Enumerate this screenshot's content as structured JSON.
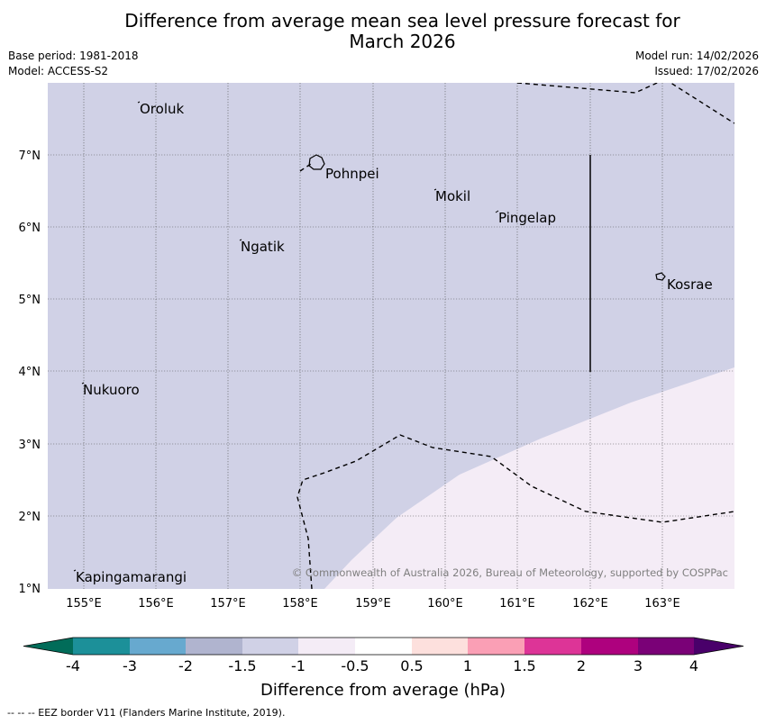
{
  "title": {
    "line1": "Difference from average mean sea level pressure forecast for",
    "line2": "March 2026"
  },
  "meta": {
    "base_period": "Base period: 1981-2018",
    "model": "Model: ACCESS-S2",
    "model_run": "Model run: 14/02/2026",
    "issued": "Issued: 17/02/2026"
  },
  "map": {
    "lon_labels": [
      "155°E",
      "156°E",
      "157°E",
      "158°E",
      "159°E",
      "160°E",
      "161°E",
      "162°E",
      "163°E"
    ],
    "lat_labels": [
      "7°N",
      "6°N",
      "5°N",
      "4°N",
      "3°N",
      "2°N",
      "1°N"
    ],
    "places": [
      "Oroluk",
      "Pohnpei",
      "Mokil",
      "Pingelap",
      "Ngatik",
      "Kosrae",
      "Nukuoro",
      "Kapingamarangi"
    ],
    "copyright": "© Commonwealth of Australia 2026, Bureau of Meteorology, supported by COSPPac",
    "colors": {
      "band_minus1_5_to_minus1": "#d0d1e6",
      "band_minus1_to_minus0_5": "#f4ecf6"
    }
  },
  "colorbar": {
    "ticks": [
      "-4",
      "-3",
      "-2",
      "-1.5",
      "-1",
      "-0.5",
      "0.5",
      "1",
      "1.5",
      "2",
      "3",
      "4"
    ],
    "colors": [
      "#016c59",
      "#1c9099",
      "#67a9cf",
      "#b0b4cf",
      "#d0d1e6",
      "#f4ecf6",
      "#ffffff",
      "#fde0dd",
      "#fa9fb5",
      "#dd3497",
      "#ae017e",
      "#7a0177",
      "#49006a"
    ],
    "label": "Difference from average (hPa)"
  },
  "footer": "--  --  -- EEZ border V11 (Flanders Marine Institute, 2019)."
}
